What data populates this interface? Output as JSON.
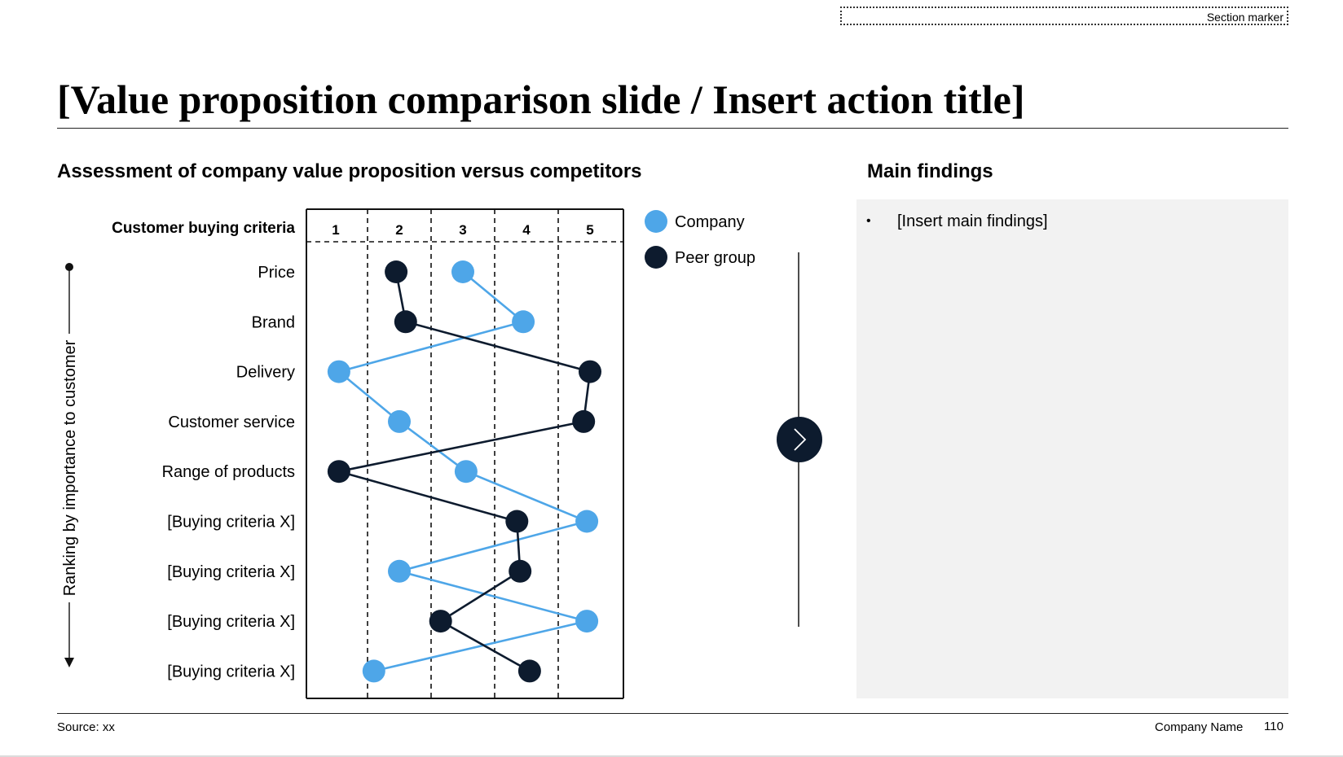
{
  "section_marker": "Section marker",
  "title": "[Value proposition comparison slide / Insert action title]",
  "chart_heading": "Assessment of company value proposition versus competitors",
  "findings": {
    "heading": "Main findings",
    "bullet": "•",
    "items": [
      "[Insert main findings]"
    ]
  },
  "arrow_icon": "chevron-right-icon",
  "footer": {
    "source": "Source: xx",
    "company": "Company Name",
    "page": "110"
  },
  "colors": {
    "company": "#4ea6e8",
    "peer": "#0d1b2e",
    "panel": "#f2f2f2"
  },
  "chart_data": {
    "type": "line",
    "column_header": "Customer buying criteria",
    "side_label": "Ranking by importance to customer",
    "x_ticks": [
      1,
      2,
      3,
      4,
      5
    ],
    "xlim": [
      0.5,
      5.5
    ],
    "grid": "dashed vertical",
    "legend_position": "right",
    "categories": [
      "Price",
      "Brand",
      "Delivery",
      "Customer service",
      "Range of products",
      "[Buying criteria X]",
      "[Buying criteria X]",
      "[Buying criteria X]",
      "[Buying criteria X]"
    ],
    "series": [
      {
        "name": "Company",
        "color": "#4ea6e8",
        "values": [
          3.0,
          3.95,
          1.05,
          2.0,
          3.05,
          4.95,
          2.0,
          4.95,
          1.6
        ]
      },
      {
        "name": "Peer group",
        "color": "#0d1b2e",
        "values": [
          1.95,
          2.1,
          5.0,
          4.9,
          1.05,
          3.85,
          3.9,
          2.65,
          4.05
        ]
      }
    ]
  }
}
